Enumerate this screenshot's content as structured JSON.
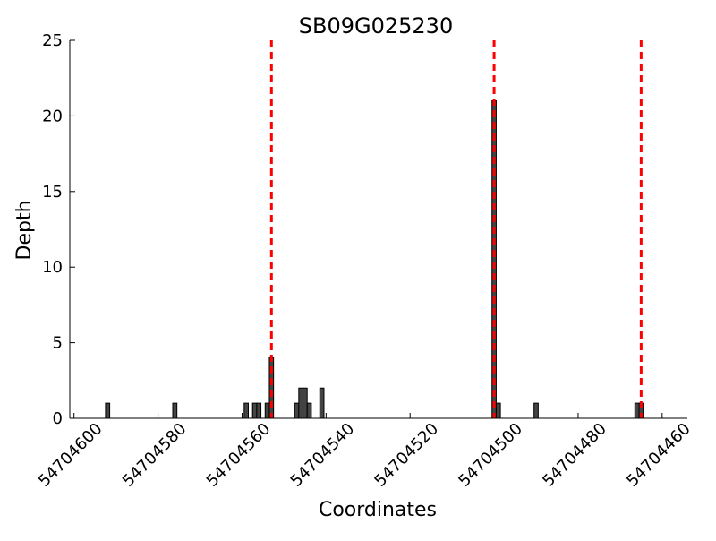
{
  "chart_data": {
    "type": "bar",
    "title": "SB09G025230",
    "x_label": "Coordinates",
    "y_label": "Depth",
    "x": [
      54704592,
      54704576,
      54704559,
      54704557,
      54704556,
      54704554,
      54704553,
      54704547,
      54704546,
      54704545,
      54704544,
      54704541,
      54704500,
      54704499,
      54704490,
      54704466,
      54704465
    ],
    "values": [
      1,
      1,
      1,
      1,
      1,
      1,
      4,
      1,
      2,
      2,
      1,
      2,
      21,
      1,
      1,
      1,
      1
    ],
    "color": "#444444",
    "edge_color": "#000000",
    "xlim": [
      54704601,
      54704454
    ],
    "xticks": [
      54704600,
      54704580,
      54704560,
      54704540,
      54704520,
      54704500,
      54704480,
      54704460
    ],
    "ylim": [
      0,
      25
    ],
    "yticks": [
      0,
      5,
      10,
      15,
      20,
      25
    ],
    "vlines": [
      54704553,
      54704500,
      54704465
    ],
    "vline_color": "#ff0000"
  }
}
